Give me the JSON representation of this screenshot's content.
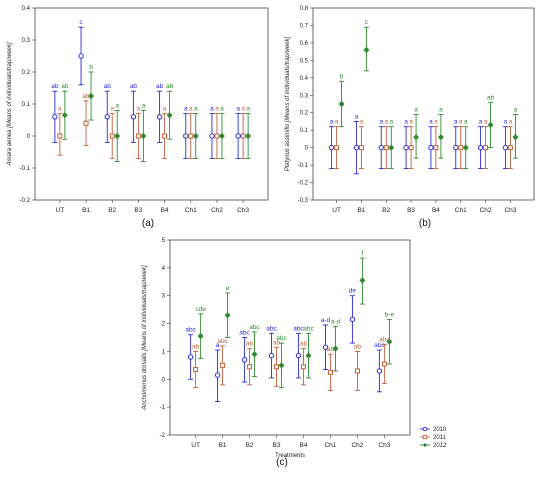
{
  "chart_data": [
    {
      "type": "scatter",
      "panel_label": "(a)",
      "ylabel": "Amara aenea [Means of individuals/trap/week]",
      "ylim": [
        -0.2,
        0.4
      ],
      "yticks": [
        -0.2,
        -0.1,
        0.0,
        0.1,
        0.2,
        0.3,
        0.4
      ],
      "categories": [
        "UT",
        "B1",
        "B2",
        "B3",
        "B4",
        "Ch1",
        "Ch2",
        "Ch3"
      ],
      "series": [
        {
          "year": "2010",
          "color": "#2a2ad6",
          "mean": [
            0.06,
            0.25,
            0.06,
            0.06,
            0.06,
            0.0,
            0.0,
            0.0
          ],
          "low": [
            -0.02,
            0.16,
            -0.02,
            -0.02,
            -0.02,
            -0.07,
            -0.07,
            -0.07
          ],
          "high": [
            0.14,
            0.34,
            0.14,
            0.14,
            0.14,
            0.07,
            0.07,
            0.07
          ],
          "labels": [
            "ab",
            "c",
            "ab",
            "ab",
            "ab",
            "a",
            "a",
            "a"
          ]
        },
        {
          "year": "2011",
          "color": "#c0603a",
          "mean": [
            0.0,
            0.04,
            0.0,
            0.0,
            0.0,
            0.0,
            0.0,
            0.0
          ],
          "low": [
            -0.06,
            -0.03,
            -0.07,
            -0.07,
            -0.07,
            -0.07,
            -0.07,
            -0.07
          ],
          "high": [
            0.07,
            0.11,
            0.07,
            0.07,
            0.07,
            0.07,
            0.07,
            0.07
          ],
          "labels": [
            "a",
            "ab",
            "a",
            "a",
            "a",
            "a",
            "a",
            "a"
          ]
        },
        {
          "year": "2012",
          "color": "#2e8b2e",
          "mean": [
            0.065,
            0.125,
            0.0,
            0.0,
            0.065,
            0.0,
            0.0,
            0.0
          ],
          "low": [
            -0.01,
            0.05,
            -0.08,
            -0.08,
            -0.01,
            -0.07,
            -0.07,
            -0.07
          ],
          "high": [
            0.14,
            0.2,
            0.08,
            0.08,
            0.14,
            0.07,
            0.07,
            0.07
          ],
          "labels": [
            "ab",
            "b",
            "a",
            "a",
            "ab",
            "a",
            "a",
            "a"
          ]
        }
      ]
    },
    {
      "type": "scatter",
      "panel_label": "(b)",
      "ylabel": "Platynus assimilis [Means of individuals/trap/week]",
      "ylim": [
        -0.3,
        0.8
      ],
      "yticks": [
        -0.3,
        -0.2,
        -0.1,
        0.0,
        0.1,
        0.2,
        0.3,
        0.4,
        0.5,
        0.6,
        0.7,
        0.8
      ],
      "categories": [
        "UT",
        "B1",
        "B2",
        "B3",
        "B4",
        "Ch1",
        "Ch2",
        "Ch3"
      ],
      "series": [
        {
          "year": "2010",
          "color": "#2a2ad6",
          "mean": [
            0.0,
            0.0,
            0.0,
            0.0,
            0.0,
            0.0,
            0.0,
            0.0
          ],
          "low": [
            -0.12,
            -0.15,
            -0.12,
            -0.12,
            -0.12,
            -0.12,
            -0.12,
            -0.12
          ],
          "high": [
            0.12,
            0.15,
            0.12,
            0.12,
            0.12,
            0.12,
            0.12,
            0.12
          ],
          "labels": [
            "a",
            "a",
            "a",
            "a",
            "a",
            "a",
            "a",
            "a"
          ]
        },
        {
          "year": "2011",
          "color": "#c0603a",
          "mean": [
            0.0,
            0.0,
            0.0,
            0.0,
            0.0,
            0.0,
            0.0,
            0.0
          ],
          "low": [
            -0.12,
            -0.12,
            -0.12,
            -0.12,
            -0.12,
            -0.12,
            -0.12,
            -0.12
          ],
          "high": [
            0.12,
            0.12,
            0.12,
            0.12,
            0.12,
            0.12,
            0.12,
            0.12
          ],
          "labels": [
            "a",
            "a",
            "a",
            "a",
            "a",
            "a",
            "a",
            "a"
          ]
        },
        {
          "year": "2012",
          "color": "#2e8b2e",
          "mean": [
            0.25,
            0.56,
            0.0,
            0.06,
            0.06,
            0.0,
            0.13,
            0.06
          ],
          "low": [
            0.12,
            0.44,
            -0.12,
            -0.06,
            -0.06,
            -0.12,
            0.0,
            -0.06
          ],
          "high": [
            0.38,
            0.69,
            0.12,
            0.19,
            0.19,
            0.12,
            0.26,
            0.19
          ],
          "labels": [
            "b",
            "c",
            "a",
            "a",
            "a",
            "a",
            "ab",
            "a"
          ]
        }
      ]
    },
    {
      "type": "scatter",
      "panel_label": "(c)",
      "ylabel": "Anchomenus dorsalis [Means of individuals/trap/week]",
      "xlabel": "Treatments",
      "ylim": [
        -2,
        5
      ],
      "yticks": [
        -2,
        -1,
        0,
        1,
        2,
        3,
        4,
        5
      ],
      "categories": [
        "UT",
        "B1",
        "B2",
        "B3",
        "B4",
        "Ch1",
        "Ch2",
        "Ch3"
      ],
      "legend": {
        "position": "bottom-right",
        "entries": [
          "2010",
          "2011",
          "2012"
        ]
      },
      "series": [
        {
          "year": "2010",
          "color": "#2a2ad6",
          "mean": [
            0.8,
            0.15,
            0.7,
            0.85,
            0.85,
            1.15,
            2.15,
            0.3
          ],
          "low": [
            0.0,
            -0.8,
            -0.1,
            0.05,
            0.05,
            0.35,
            1.3,
            -0.45
          ],
          "high": [
            1.6,
            1.05,
            1.5,
            1.65,
            1.65,
            1.95,
            3.0,
            1.05
          ],
          "labels": [
            "abc",
            "a",
            "abc",
            "abc",
            "abc",
            "a-d",
            "de",
            "abc"
          ]
        },
        {
          "year": "2011",
          "color": "#c0603a",
          "mean": [
            0.35,
            0.5,
            0.45,
            0.45,
            0.45,
            0.25,
            0.3,
            0.55
          ],
          "low": [
            -0.3,
            -0.2,
            -0.2,
            -0.25,
            -0.2,
            -0.4,
            -0.4,
            -0.15
          ],
          "high": [
            1.0,
            1.2,
            1.1,
            1.15,
            1.1,
            0.9,
            1.0,
            1.25
          ],
          "labels": [
            "ab",
            "abc",
            "ab",
            "ab",
            "ab",
            "ab",
            "ab",
            "abc"
          ]
        },
        {
          "year": "2012",
          "color": "#2e8b2e",
          "mean": [
            1.55,
            2.3,
            0.9,
            0.5,
            0.85,
            1.1,
            3.55,
            1.35
          ],
          "low": [
            0.75,
            1.5,
            0.1,
            -0.3,
            0.05,
            0.3,
            2.7,
            0.55
          ],
          "high": [
            2.35,
            3.1,
            1.7,
            1.3,
            1.65,
            1.9,
            4.35,
            2.15
          ],
          "labels": [
            "cde",
            "e",
            "abc",
            "abc",
            "abc",
            "a-d",
            "f",
            "b-e"
          ]
        }
      ]
    }
  ]
}
